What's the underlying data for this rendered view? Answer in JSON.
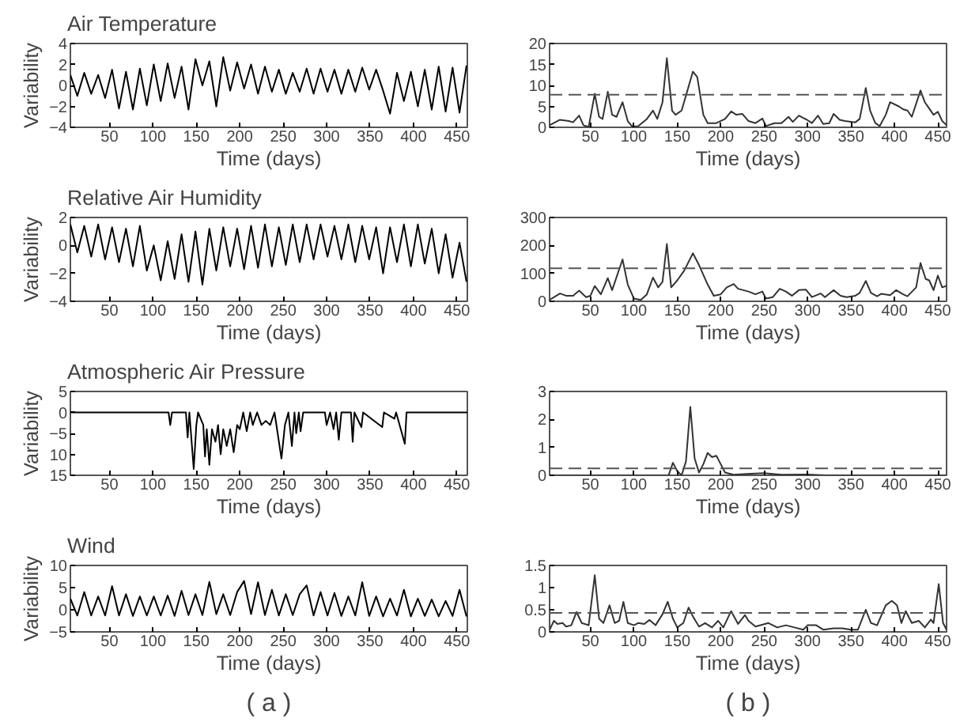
{
  "chart_data": [
    {
      "type": "line",
      "title": "Air Temperature",
      "ylabel": "Variability",
      "xlabel": "Time (days)",
      "xlim": [
        5,
        462
      ],
      "xticks": [
        50,
        100,
        150,
        200,
        250,
        300,
        350,
        400,
        450
      ],
      "ylim": [
        -4,
        4
      ],
      "yticks": [
        -4,
        -2,
        0,
        2,
        4
      ],
      "grid": false,
      "x": [
        5,
        13,
        21,
        29,
        37,
        45,
        53,
        61,
        69,
        77,
        85,
        93,
        101,
        109,
        117,
        125,
        133,
        141,
        149,
        157,
        165,
        173,
        181,
        189,
        197,
        205,
        213,
        221,
        229,
        237,
        245,
        253,
        261,
        269,
        277,
        285,
        293,
        301,
        309,
        317,
        325,
        333,
        341,
        349,
        357,
        365,
        373,
        381,
        389,
        397,
        405,
        413,
        421,
        429,
        437,
        445,
        453,
        461
      ],
      "series": [
        {
          "color": "#000000",
          "values": [
            1,
            -1,
            1.2,
            -0.8,
            1,
            -1.2,
            1.5,
            -2.2,
            1.3,
            -2.3,
            1.6,
            -1.9,
            2,
            -1.5,
            2.1,
            -1.2,
            1.8,
            -2.3,
            2.5,
            0,
            2.3,
            -2,
            2.7,
            -0.5,
            2.2,
            -0.3,
            2,
            -0.8,
            1.8,
            -0.6,
            1.5,
            -0.8,
            1.2,
            -0.6,
            1.6,
            -0.8,
            1.6,
            -0.6,
            1.5,
            -0.8,
            1.5,
            -0.6,
            1.7,
            -0.4,
            1.5,
            -0.5,
            -2.7,
            1.2,
            -1.5,
            1.3,
            -2,
            1.5,
            -2.3,
            1.8,
            -2.5,
            1.7,
            -2.6,
            1.9
          ]
        }
      ]
    },
    {
      "type": "line",
      "xlabel": "Time (days)",
      "xlim": [
        3,
        460
      ],
      "xticks": [
        50,
        100,
        150,
        200,
        250,
        300,
        350,
        400,
        450
      ],
      "ylim": [
        0,
        20
      ],
      "yticks": [
        0,
        5,
        10,
        15,
        20
      ],
      "grid": false,
      "ref_lines": [
        {
          "axis": "y",
          "value": 7.8,
          "line_style": "dashed",
          "color": "#555555"
        }
      ],
      "series": [
        {
          "color": "#333333",
          "x": [
            3,
            15,
            25,
            30,
            37,
            42,
            48,
            55,
            60,
            64,
            70,
            75,
            80,
            87,
            93,
            98,
            105,
            115,
            122,
            127,
            133,
            138,
            144,
            148,
            155,
            162,
            168,
            173,
            180,
            185,
            195,
            205,
            212,
            218,
            225,
            232,
            240,
            248,
            252,
            262,
            270,
            278,
            283,
            290,
            300,
            305,
            312,
            318,
            325,
            330,
            337,
            343,
            355,
            360,
            367,
            372,
            378,
            383,
            390,
            395,
            405,
            410,
            415,
            420,
            430,
            435,
            440,
            445,
            450,
            455,
            460
          ],
          "values": [
            0.5,
            1.8,
            1.5,
            1.2,
            2.8,
            0.5,
            0.1,
            8,
            2.5,
            2,
            8.5,
            3,
            2.5,
            6,
            1.5,
            0.2,
            0.3,
            2,
            4,
            2,
            6,
            16.5,
            4,
            3,
            4,
            9,
            13.3,
            12,
            3,
            1,
            1,
            2,
            3.8,
            3,
            3.2,
            1.5,
            1,
            2.1,
            0.3,
            1,
            1,
            2.5,
            1.3,
            2.8,
            1.7,
            1,
            2.8,
            0.8,
            1,
            3.2,
            1.8,
            1.5,
            1.2,
            2,
            9.4,
            4,
            1,
            0.3,
            3,
            6,
            5,
            4.3,
            4,
            2.5,
            8.8,
            6,
            4.5,
            3,
            3.7,
            1.5,
            0.5
          ]
        }
      ]
    },
    {
      "type": "line",
      "title": "Relative Air Humidity",
      "ylabel": "Variability",
      "xlabel": "Time (days)",
      "xlim": [
        5,
        462
      ],
      "xticks": [
        50,
        100,
        150,
        200,
        250,
        300,
        350,
        400,
        450
      ],
      "ylim": [
        -4,
        2
      ],
      "yticks": [
        -4,
        -2,
        0,
        2
      ],
      "grid": false,
      "x": [
        5,
        13,
        21,
        29,
        37,
        45,
        53,
        61,
        69,
        77,
        85,
        93,
        101,
        109,
        117,
        125,
        133,
        141,
        149,
        157,
        165,
        173,
        181,
        189,
        197,
        205,
        213,
        221,
        229,
        237,
        245,
        253,
        261,
        269,
        277,
        285,
        293,
        301,
        309,
        317,
        325,
        333,
        341,
        349,
        357,
        365,
        373,
        381,
        389,
        397,
        405,
        413,
        421,
        429,
        437,
        445,
        453,
        461
      ],
      "series": [
        {
          "color": "#000000",
          "values": [
            1.5,
            -0.5,
            1.4,
            -0.8,
            1.5,
            -1,
            1.3,
            -1.2,
            1.2,
            -1.5,
            1.4,
            -1.8,
            0,
            -2.5,
            0.3,
            -2.4,
            0.8,
            -2.6,
            1,
            -2.8,
            1.2,
            -1.8,
            1.3,
            -1.5,
            1.2,
            -1.7,
            1.4,
            -1.6,
            1.5,
            -1.5,
            1.3,
            -1.4,
            1.5,
            -1.2,
            1.5,
            -1,
            1.5,
            -0.8,
            1.4,
            -1,
            1.5,
            -1.2,
            1.4,
            -1,
            1.3,
            -2,
            1.3,
            -1.2,
            1.5,
            -1.5,
            1.5,
            -1.3,
            1.2,
            -2,
            0.8,
            -2.3,
            0.2,
            -2.6
          ]
        }
      ]
    },
    {
      "type": "line",
      "xlabel": "Time (days)",
      "xlim": [
        3,
        460
      ],
      "xticks": [
        50,
        100,
        150,
        200,
        250,
        300,
        350,
        400,
        450
      ],
      "ylim": [
        0,
        300
      ],
      "yticks": [
        0,
        100,
        200,
        300
      ],
      "grid": false,
      "ref_lines": [
        {
          "axis": "y",
          "value": 118,
          "line_style": "dashed",
          "color": "#555555"
        }
      ],
      "series": [
        {
          "color": "#333333",
          "x": [
            3,
            15,
            22,
            30,
            37,
            45,
            50,
            55,
            62,
            70,
            75,
            87,
            93,
            100,
            108,
            115,
            122,
            128,
            133,
            138,
            143,
            150,
            158,
            168,
            175,
            185,
            192,
            200,
            207,
            215,
            220,
            232,
            240,
            248,
            252,
            260,
            268,
            275,
            282,
            290,
            298,
            305,
            315,
            320,
            330,
            338,
            345,
            355,
            360,
            367,
            373,
            380,
            385,
            395,
            402,
            410,
            415,
            425,
            430,
            436,
            440,
            445,
            450,
            455,
            460
          ],
          "values": [
            5,
            28,
            20,
            20,
            38,
            15,
            20,
            55,
            25,
            83,
            40,
            150,
            60,
            10,
            5,
            25,
            85,
            50,
            70,
            205,
            50,
            75,
            110,
            172,
            130,
            60,
            20,
            25,
            50,
            62,
            45,
            35,
            25,
            35,
            10,
            15,
            45,
            35,
            20,
            40,
            42,
            15,
            28,
            15,
            40,
            20,
            15,
            20,
            30,
            73,
            30,
            18,
            27,
            22,
            40,
            25,
            18,
            50,
            137,
            80,
            75,
            40,
            92,
            50,
            55
          ]
        }
      ]
    },
    {
      "type": "line",
      "title": "Atmospheric Air Pressure",
      "ylabel": "Variability",
      "xlabel": "Time (days)",
      "xlim": [
        5,
        462
      ],
      "xticks": [
        50,
        100,
        150,
        200,
        250,
        300,
        350,
        400,
        450
      ],
      "ylim": [
        -15,
        5
      ],
      "yticks": [
        5,
        0,
        -5,
        {
          "value": -10,
          "label": "10"
        },
        {
          "value": -15,
          "label": "15"
        }
      ],
      "grid": false,
      "series": [
        {
          "color": "#000000",
          "x": [
            5,
            118,
            120,
            122,
            138,
            140,
            142,
            147,
            150,
            152,
            158,
            160,
            162,
            165,
            168,
            172,
            175,
            178,
            181,
            185,
            189,
            193,
            197,
            200,
            204,
            208,
            212,
            215,
            220,
            225,
            230,
            235,
            240,
            248,
            252,
            256,
            260,
            263,
            265,
            268,
            270,
            273,
            298,
            300,
            304,
            308,
            311,
            314,
            317,
            328,
            330,
            332,
            340,
            342,
            364,
            366,
            378,
            380,
            390,
            392,
            462
          ],
          "values": [
            0,
            0,
            -3,
            0,
            0,
            -6,
            0,
            -13.5,
            -3,
            0,
            -3,
            -10.5,
            -4,
            -12.5,
            -4,
            -7,
            -3,
            -10,
            -4,
            -8,
            -4,
            -9.5,
            -3,
            -4,
            0,
            -4.5,
            0,
            -3,
            0,
            -3,
            -2,
            -3,
            0,
            -11,
            -3,
            0,
            -8,
            0,
            -5,
            0,
            -4.5,
            0,
            0,
            -3,
            0,
            -4,
            0,
            -6.5,
            0,
            0,
            -7,
            0,
            -3.5,
            0,
            -3.5,
            0,
            -1.5,
            0,
            -7.5,
            0,
            0
          ]
        }
      ]
    },
    {
      "type": "line",
      "xlabel": "Time (days)",
      "xlim": [
        3,
        460
      ],
      "xticks": [
        50,
        100,
        150,
        200,
        250,
        300,
        350,
        400,
        450
      ],
      "ylim": [
        0,
        3
      ],
      "yticks": [
        0,
        1,
        2,
        3
      ],
      "grid": false,
      "ref_lines": [
        {
          "axis": "y",
          "value": 0.25,
          "line_style": "dashed",
          "color": "#555555"
        }
      ],
      "series": [
        {
          "color": "#333333",
          "x": [
            3,
            140,
            145,
            150,
            155,
            160,
            165,
            170,
            175,
            180,
            185,
            190,
            195,
            200,
            205,
            215,
            230,
            250,
            270,
            300,
            320,
            460
          ],
          "values": [
            0,
            0,
            0.45,
            0.15,
            0,
            0.5,
            2.45,
            0.6,
            0.1,
            0.4,
            0.8,
            0.65,
            0.7,
            0.4,
            0.1,
            0.02,
            0.05,
            0.08,
            0.02,
            0.03,
            0,
            0
          ]
        }
      ]
    },
    {
      "type": "line",
      "title": "Wind",
      "ylabel": "Variability",
      "xlabel": "Time (days)",
      "annotations": [
        "( a )"
      ],
      "xlim": [
        5,
        462
      ],
      "xticks": [
        50,
        100,
        150,
        200,
        250,
        300,
        350,
        400,
        450
      ],
      "ylim": [
        -5,
        10
      ],
      "yticks": [
        -5,
        0,
        5,
        10
      ],
      "grid": false,
      "x": [
        5,
        13,
        21,
        29,
        37,
        45,
        53,
        61,
        69,
        77,
        85,
        93,
        101,
        109,
        117,
        125,
        133,
        141,
        149,
        157,
        165,
        173,
        181,
        189,
        197,
        205,
        213,
        221,
        229,
        237,
        245,
        253,
        261,
        269,
        277,
        285,
        293,
        301,
        309,
        317,
        325,
        333,
        341,
        349,
        357,
        365,
        373,
        381,
        389,
        397,
        405,
        413,
        421,
        429,
        437,
        445,
        453,
        461
      ],
      "series": [
        {
          "color": "#000000",
          "values": [
            2.5,
            -1.3,
            4,
            -1.3,
            3,
            -1.3,
            5.3,
            -1.3,
            3.5,
            -1.4,
            3,
            -1.3,
            3,
            -1.3,
            3.2,
            -1.4,
            4.3,
            -1.2,
            3.5,
            -1.2,
            6.3,
            -1,
            3.5,
            -1.2,
            4,
            6.5,
            -1,
            6.2,
            -1.2,
            4.5,
            -1.3,
            3.5,
            -1.2,
            3.5,
            5.5,
            -1.3,
            4,
            -1.3,
            3.8,
            -1.4,
            3,
            -1.3,
            6.2,
            -1.4,
            3,
            -1.5,
            2.5,
            -1.3,
            4.5,
            -1.5,
            2.5,
            -1.4,
            2.3,
            -1.5,
            2,
            -1.4,
            4.5,
            -1.5
          ]
        }
      ]
    },
    {
      "type": "line",
      "xlabel": "Time (days)",
      "annotations": [
        "( b )"
      ],
      "xlim": [
        3,
        460
      ],
      "xticks": [
        50,
        100,
        150,
        200,
        250,
        300,
        350,
        400,
        450
      ],
      "ylim": [
        0,
        1.5
      ],
      "yticks": [
        0,
        0.5,
        1,
        1.5
      ],
      "grid": false,
      "ref_lines": [
        {
          "axis": "y",
          "value": 0.43,
          "line_style": "dashed",
          "color": "#555555"
        }
      ],
      "series": [
        {
          "color": "#333333",
          "x": [
            3,
            8,
            12,
            18,
            22,
            28,
            34,
            40,
            48,
            55,
            60,
            65,
            72,
            78,
            83,
            88,
            93,
            100,
            105,
            112,
            118,
            125,
            133,
            139,
            145,
            150,
            157,
            163,
            168,
            175,
            182,
            190,
            197,
            203,
            212,
            220,
            228,
            232,
            240,
            255,
            265,
            275,
            285,
            295,
            300,
            310,
            318,
            330,
            340,
            350,
            358,
            367,
            373,
            380,
            390,
            397,
            403,
            408,
            413,
            420,
            428,
            435,
            442,
            445,
            451,
            456,
            460
          ],
          "values": [
            0.05,
            0.25,
            0.18,
            0.2,
            0.12,
            0.15,
            0.45,
            0.2,
            0.15,
            1.28,
            0.3,
            0.2,
            0.6,
            0.2,
            0.25,
            0.68,
            0.2,
            0.15,
            0.2,
            0.18,
            0.27,
            0.15,
            0.4,
            0.68,
            0.3,
            0.1,
            0.2,
            0.55,
            0.35,
            0.12,
            0.2,
            0.1,
            0.25,
            0.1,
            0.47,
            0.18,
            0.38,
            0.25,
            0.12,
            0.2,
            0.1,
            0.15,
            0.1,
            0.05,
            0.15,
            0.15,
            0.05,
            0.08,
            0.08,
            0.05,
            0.05,
            0.5,
            0.2,
            0.15,
            0.6,
            0.7,
            0.6,
            0.2,
            0.47,
            0.2,
            0.25,
            0.1,
            0.28,
            0.2,
            1.08,
            0.2,
            0.05
          ]
        }
      ]
    }
  ]
}
